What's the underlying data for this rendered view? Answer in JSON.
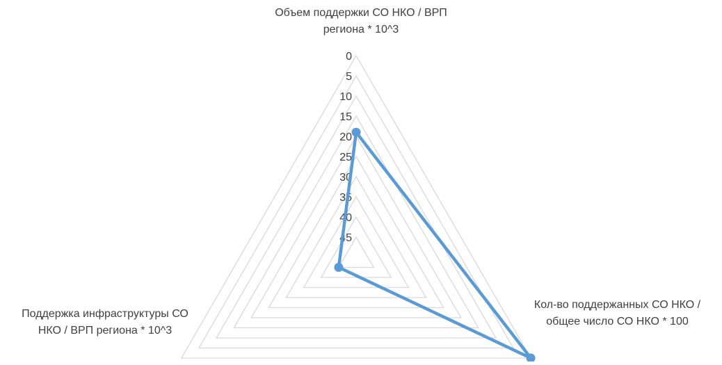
{
  "chart_data": {
    "type": "radar",
    "axes": [
      "Объем поддержки СО НКО / ВРП региона * 10^3",
      "Кол-во поддержанных СО НКО / общее число СО НКО * 100",
      "Поддержка инфраструктуры СО НКО / ВРП региона * 10^3"
    ],
    "axis_titles": {
      "top": "Объем поддержки СО НКО / ВРП региона * 10^3",
      "right": "Кол-во поддержанных СО НКО / общее число СО НКО * 100",
      "left": "Поддержка инфраструктуры СО НКО / ВРП региона * 10^3"
    },
    "radial_scale": {
      "min": 0,
      "max": 50,
      "step": 5,
      "reversed": true
    },
    "tick_labels": [
      "0",
      "5",
      "10",
      "15",
      "20",
      "25",
      "30",
      "35",
      "40",
      "45"
    ],
    "series": [
      {
        "values": [
          19,
          0,
          45
        ],
        "color": "#5B9BD5"
      }
    ],
    "grid": true,
    "legend": false,
    "colors": {
      "grid": "#D9D9D9",
      "series": "#5B9BD5",
      "text": "#404040"
    }
  }
}
